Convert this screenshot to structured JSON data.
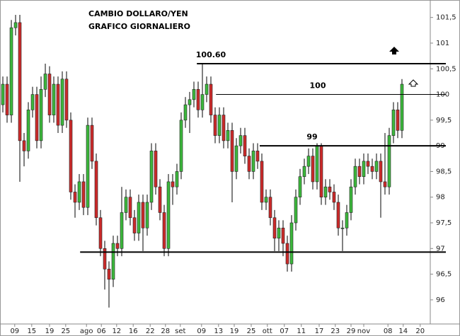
{
  "chart_data": {
    "type": "candlestick",
    "title": "CAMBIO DOLLARO/YEN",
    "subtitle": "GRAFICO GIORNALIERO",
    "xlim": [
      -0.67,
      100.67
    ],
    "ylim": [
      95.53,
      101.84
    ],
    "yticks": [
      96,
      {
        "value": 96.5,
        "label": "96,5"
      },
      97,
      {
        "value": 97.5,
        "label": "97,5"
      },
      98,
      {
        "value": 98.5,
        "label": "98,5"
      },
      99,
      {
        "value": 99.5,
        "label": "99,5"
      },
      100,
      {
        "value": 100.5,
        "label": "100,5"
      },
      101,
      {
        "value": 101.5,
        "label": "101,5"
      }
    ],
    "xticks": [
      {
        "value": 2.8,
        "label": "09"
      },
      {
        "value": 6.8,
        "label": "15"
      },
      {
        "value": 11,
        "label": "19"
      },
      {
        "value": 14.8,
        "label": "25"
      },
      {
        "value": 19.7,
        "label": "ago"
      },
      {
        "value": 23.2,
        "label": "06"
      },
      {
        "value": 26.8,
        "label": "12"
      },
      {
        "value": 30.7,
        "label": "16"
      },
      {
        "value": 34.7,
        "label": "22"
      },
      {
        "value": 38.3,
        "label": "28"
      },
      {
        "value": 41.8,
        "label": "set"
      },
      {
        "value": 46.8,
        "label": "09"
      },
      {
        "value": 50.8,
        "label": "13"
      },
      {
        "value": 54.5,
        "label": "19"
      },
      {
        "value": 58.5,
        "label": "25"
      },
      {
        "value": 62.3,
        "label": "ott"
      },
      {
        "value": 66.3,
        "label": "07"
      },
      {
        "value": 70.3,
        "label": "11"
      },
      {
        "value": 74.5,
        "label": "17"
      },
      {
        "value": 78.3,
        "label": "23"
      },
      {
        "value": 82,
        "label": "29"
      },
      {
        "value": 85,
        "label": "nov"
      },
      {
        "value": 90.7,
        "label": "08"
      },
      {
        "value": 94.3,
        "label": "14"
      },
      {
        "value": 98.3,
        "label": "20"
      }
    ],
    "up_color": "#3cb83c",
    "down_color": "#cc2a2a",
    "open": [
      99.8,
      100.2,
      99.6,
      101.3,
      101.4,
      99.1,
      98.9,
      99.7,
      100.0,
      99.1,
      100.1,
      100.4,
      99.6,
      100.2,
      99.4,
      100.3,
      99.5,
      98.1,
      97.9,
      98.3,
      97.8,
      99.4,
      98.7,
      97.6,
      97.0,
      96.6,
      96.4,
      97.1,
      97.0,
      97.7,
      98.0,
      97.6,
      97.3,
      97.9,
      97.4,
      97.9,
      98.9,
      98.2,
      97.7,
      97.0,
      98.3,
      98.2,
      98.5,
      99.5,
      99.8,
      99.9,
      100.1,
      99.7,
      100.0,
      100.2,
      99.6,
      99.2,
      99.6,
      99.1,
      99.3,
      98.5,
      99.0,
      99.2,
      98.8,
      98.5,
      98.9,
      98.7,
      97.9,
      98.0,
      97.6,
      97.2,
      97.4,
      97.1,
      96.7,
      97.5,
      98.0,
      98.4,
      98.6,
      98.8,
      98.3,
      99.0,
      98.0,
      98.2,
      98.1,
      97.9,
      97.4,
      97.4,
      97.7,
      98.2,
      98.6,
      98.4,
      98.7,
      98.6,
      98.5,
      98.7,
      98.3,
      98.2,
      99.2,
      99.7,
      99.3
    ],
    "close": [
      100.2,
      99.6,
      101.3,
      101.4,
      99.1,
      98.9,
      99.7,
      100.0,
      99.1,
      100.1,
      100.4,
      99.6,
      100.2,
      99.4,
      100.3,
      99.5,
      98.1,
      97.9,
      98.3,
      97.8,
      99.4,
      98.7,
      97.6,
      97.0,
      96.6,
      96.4,
      97.1,
      97.0,
      97.7,
      98.0,
      97.6,
      97.3,
      97.9,
      97.4,
      97.9,
      98.9,
      98.2,
      97.7,
      97.0,
      98.3,
      98.2,
      98.5,
      99.5,
      99.8,
      99.9,
      100.1,
      99.7,
      100.0,
      100.2,
      99.6,
      99.2,
      99.6,
      99.1,
      99.3,
      98.5,
      99.0,
      99.2,
      98.8,
      98.5,
      98.9,
      98.7,
      97.9,
      98.0,
      97.6,
      97.2,
      97.4,
      97.1,
      96.7,
      97.5,
      98.0,
      98.4,
      98.6,
      98.8,
      98.3,
      99.0,
      98.0,
      98.2,
      98.1,
      97.9,
      97.4,
      97.4,
      97.7,
      98.2,
      98.6,
      98.4,
      98.7,
      98.6,
      98.5,
      98.7,
      98.3,
      98.2,
      99.2,
      99.7,
      99.3,
      100.2
    ],
    "high": [
      100.35,
      100.35,
      101.45,
      101.55,
      101.55,
      99.25,
      99.85,
      100.15,
      100.15,
      100.35,
      100.6,
      100.55,
      100.35,
      100.35,
      100.45,
      100.45,
      99.65,
      98.25,
      98.45,
      98.45,
      99.55,
      99.55,
      98.85,
      97.75,
      97.15,
      96.75,
      97.25,
      97.25,
      98.2,
      98.15,
      98.15,
      97.75,
      98.05,
      98.05,
      98.05,
      99.05,
      99.05,
      98.35,
      97.85,
      98.45,
      98.45,
      98.65,
      99.65,
      99.95,
      100.05,
      100.25,
      100.25,
      100.6,
      100.35,
      100.35,
      99.75,
      99.75,
      99.75,
      99.45,
      99.45,
      99.15,
      99.35,
      99.35,
      98.95,
      99.05,
      99.05,
      98.85,
      98.15,
      98.15,
      97.75,
      97.55,
      97.55,
      97.25,
      97.65,
      98.15,
      98.55,
      98.75,
      98.95,
      98.95,
      99.05,
      99.05,
      98.35,
      98.35,
      98.25,
      98.05,
      97.55,
      97.85,
      98.35,
      98.75,
      98.75,
      98.85,
      98.85,
      98.75,
      98.85,
      98.85,
      99.25,
      99.35,
      99.85,
      99.85,
      100.3
    ],
    "low": [
      99.65,
      99.45,
      99.45,
      101.15,
      98.3,
      98.6,
      98.75,
      99.55,
      98.95,
      98.95,
      99.95,
      99.45,
      99.45,
      99.25,
      99.25,
      99.35,
      97.95,
      97.6,
      97.75,
      97.65,
      97.65,
      98.55,
      97.45,
      96.85,
      96.2,
      95.85,
      96.25,
      96.85,
      96.85,
      97.55,
      97.45,
      97.15,
      97.15,
      96.95,
      97.25,
      97.75,
      98.05,
      97.55,
      96.85,
      96.85,
      97.85,
      98.05,
      98.35,
      99.35,
      99.25,
      99.75,
      99.55,
      99.55,
      99.85,
      99.45,
      99.05,
      99.05,
      98.95,
      98.95,
      97.9,
      98.35,
      98.85,
      98.65,
      98.35,
      98.35,
      98.55,
      97.75,
      97.75,
      97.45,
      96.95,
      96.95,
      96.85,
      96.55,
      96.55,
      97.35,
      97.85,
      98.25,
      98.45,
      98.15,
      98.15,
      97.85,
      97.85,
      97.95,
      97.75,
      97.25,
      96.95,
      97.25,
      97.55,
      98.05,
      98.25,
      98.25,
      98.45,
      98.35,
      98.35,
      97.6,
      98.05,
      98.05,
      99.05,
      99.15,
      99.15
    ],
    "levels": [
      {
        "value": 100.6,
        "label": "100.60",
        "start": 45.7
      },
      {
        "value": 100,
        "label": "100",
        "start": 50.2
      },
      {
        "value": 99,
        "label": "99",
        "start": 60.5
      },
      {
        "value": 96.93,
        "start": 18.2
      }
    ]
  }
}
